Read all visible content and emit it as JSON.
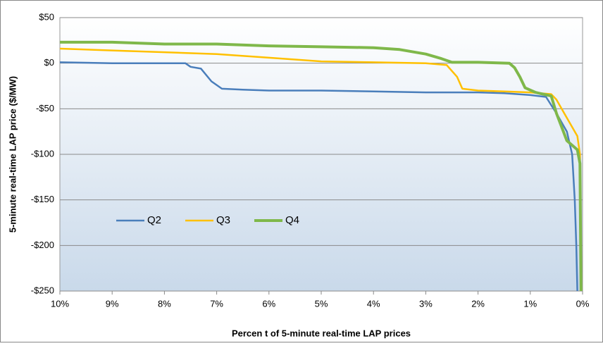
{
  "chart_data": {
    "type": "line",
    "y_label": "5-minute real-time LAP price ($/MW)",
    "x_label": "Percen t of 5-minute real-time LAP prices",
    "xlim": [
      10,
      0
    ],
    "xticks": [
      {
        "value": 10,
        "label": "10%"
      },
      {
        "value": 9,
        "label": "9%"
      },
      {
        "value": 8,
        "label": "8%"
      },
      {
        "value": 7,
        "label": "7%"
      },
      {
        "value": 6,
        "label": "6%"
      },
      {
        "value": 5,
        "label": "5%"
      },
      {
        "value": 4,
        "label": "4%"
      },
      {
        "value": 3,
        "label": "3%"
      },
      {
        "value": 2,
        "label": "2%"
      },
      {
        "value": 1,
        "label": "1%"
      },
      {
        "value": 0,
        "label": "0%"
      }
    ],
    "ylim": [
      -250,
      50
    ],
    "yticks": [
      {
        "value": 50,
        "label": "$50"
      },
      {
        "value": 0,
        "label": "$0"
      },
      {
        "value": -50,
        "label": "-$50"
      },
      {
        "value": -100,
        "label": "-$100"
      },
      {
        "value": -150,
        "label": "-$150"
      },
      {
        "value": -200,
        "label": "-$200"
      },
      {
        "value": -250,
        "label": "-$250"
      }
    ],
    "grid": true,
    "legend": "lower left",
    "series": [
      {
        "name": "Q2",
        "color": "#4a7ebb",
        "x": [
          10,
          9,
          8,
          7.6,
          7.5,
          7.3,
          7.1,
          6.9,
          6.5,
          6,
          5,
          4,
          3,
          2,
          1.5,
          1,
          0.7,
          0.5,
          0.3,
          0.2,
          0.15,
          0.12,
          0.1
        ],
        "values": [
          1,
          0,
          0,
          0,
          -4,
          -6,
          -20,
          -28,
          -29,
          -30,
          -30,
          -31,
          -32,
          -32,
          -33,
          -35,
          -37,
          -55,
          -75,
          -100,
          -150,
          -200,
          -250
        ]
      },
      {
        "name": "Q3",
        "color": "#ffc000",
        "x": [
          10,
          9,
          8,
          7,
          6,
          5,
          4,
          3,
          2.6,
          2.4,
          2.3,
          2,
          1.5,
          1,
          0.6,
          0.5,
          0.3,
          0.1,
          0.05,
          0.03
        ],
        "values": [
          16,
          14,
          12,
          10,
          6,
          2,
          1,
          0,
          -2,
          -15,
          -28,
          -30,
          -31,
          -32,
          -34,
          -40,
          -60,
          -80,
          -100,
          -250
        ]
      },
      {
        "name": "Q4",
        "color": "#7fb84a",
        "x": [
          10,
          9,
          8,
          7,
          6,
          5,
          4,
          3.5,
          3,
          2.7,
          2.5,
          2,
          1.4,
          1.3,
          1.2,
          1.1,
          0.9,
          0.6,
          0.5,
          0.4,
          0.3,
          0.1,
          0.05,
          0.03
        ],
        "values": [
          23,
          23,
          21,
          21,
          19,
          18,
          17,
          15,
          10,
          5,
          1,
          1,
          0,
          -5,
          -15,
          -27,
          -32,
          -36,
          -55,
          -70,
          -85,
          -95,
          -110,
          -250
        ]
      }
    ]
  }
}
